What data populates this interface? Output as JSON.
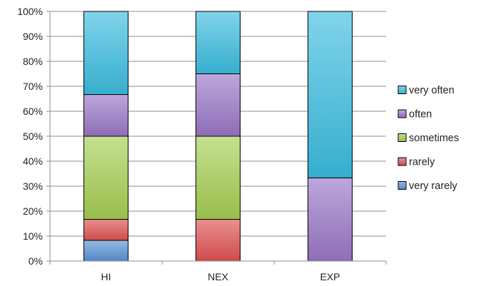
{
  "chart_data": {
    "type": "bar",
    "stacked": true,
    "percent": true,
    "categories": [
      "HI",
      "NEX",
      "EXP"
    ],
    "series": [
      {
        "name": "very rarely",
        "values": [
          8.3,
          0,
          0
        ],
        "color": "#5b93d6"
      },
      {
        "name": "rarely",
        "values": [
          8.4,
          16.7,
          0
        ],
        "color": "#e05252"
      },
      {
        "name": "sometimes",
        "values": [
          33.3,
          33.3,
          0
        ],
        "color": "#a6cf52"
      },
      {
        "name": "often",
        "values": [
          16.7,
          25.0,
          33.3
        ],
        "color": "#9a77c7"
      },
      {
        "name": "very often",
        "values": [
          33.3,
          25.0,
          66.7
        ],
        "color": "#3bbde0"
      }
    ],
    "legend_order": [
      "very often",
      "often",
      "sometimes",
      "rarely",
      "very rarely"
    ],
    "yticks": [
      "0%",
      "10%",
      "20%",
      "30%",
      "40%",
      "50%",
      "60%",
      "70%",
      "80%",
      "90%",
      "100%"
    ],
    "ylim": [
      0,
      100
    ],
    "grid": true,
    "legend": "right",
    "title": "",
    "xlabel": "",
    "ylabel": ""
  }
}
